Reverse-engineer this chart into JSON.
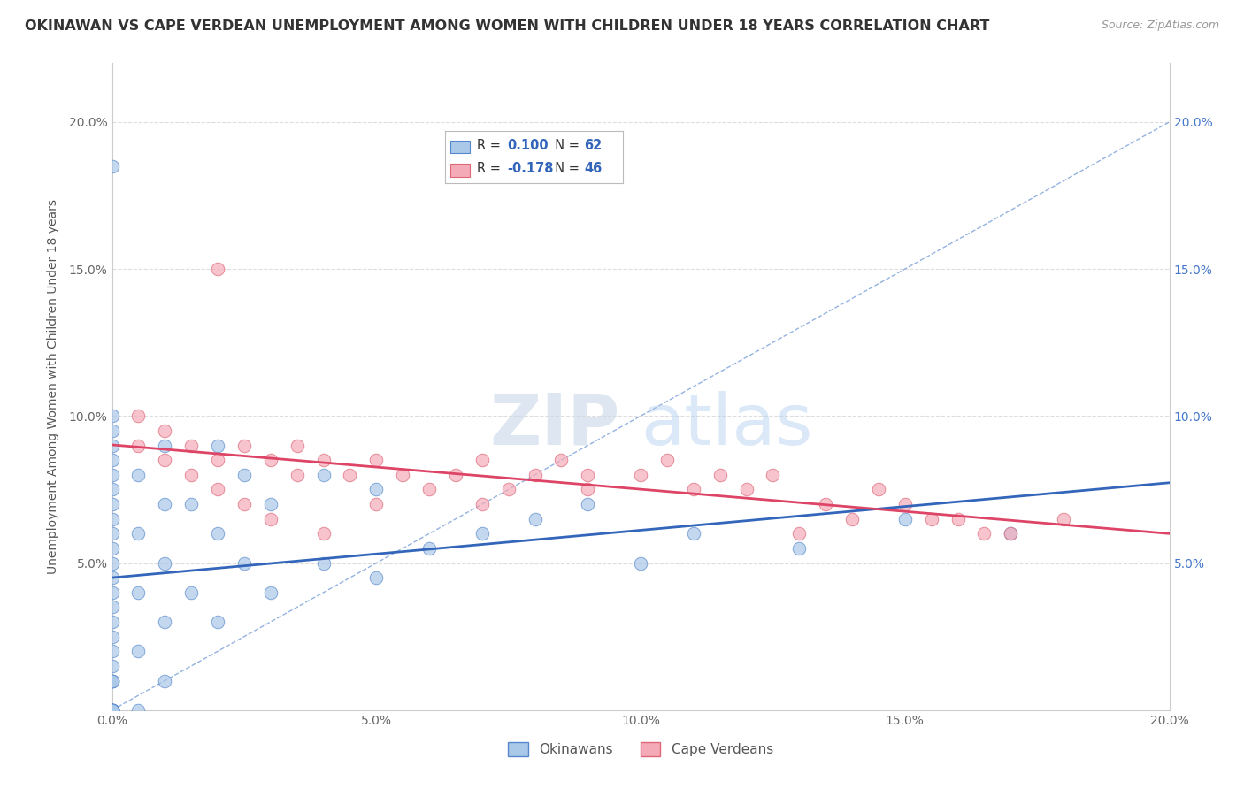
{
  "title": "OKINAWAN VS CAPE VERDEAN UNEMPLOYMENT AMONG WOMEN WITH CHILDREN UNDER 18 YEARS CORRELATION CHART",
  "source": "Source: ZipAtlas.com",
  "ylabel": "Unemployment Among Women with Children Under 18 years",
  "xlim": [
    0.0,
    0.2
  ],
  "ylim": [
    0.0,
    0.22
  ],
  "xticks": [
    0.0,
    0.05,
    0.1,
    0.15,
    0.2
  ],
  "yticks": [
    0.05,
    0.1,
    0.15,
    0.2
  ],
  "xticklabels": [
    "0.0%",
    "5.0%",
    "10.0%",
    "15.0%",
    "20.0%"
  ],
  "left_yticklabels": [
    "5.0%",
    "10.0%",
    "15.0%",
    "20.0%"
  ],
  "right_yticklabels": [
    "5.0%",
    "10.0%",
    "15.0%",
    "20.0%"
  ],
  "okinawan_color": "#aac8e8",
  "cape_verdean_color": "#f5aab8",
  "okinawan_edge": "#5588cc",
  "cape_verdean_edge": "#dd6677",
  "trend_blue": "#3366bb",
  "trend_pink": "#dd4466",
  "diag_color": "#88aadd",
  "R_okinawan": 0.1,
  "N_okinawan": 62,
  "R_cape_verdean": -0.178,
  "N_cape_verdean": 46,
  "watermark_zip": "ZIP",
  "watermark_atlas": "atlas",
  "legend_labels": [
    "Okinawans",
    "Cape Verdeans"
  ],
  "background_color": "#ffffff",
  "grid_color": "#dddddd",
  "okinawan_x": [
    0.0,
    0.0,
    0.0,
    0.0,
    0.0,
    0.0,
    0.0,
    0.0,
    0.0,
    0.0,
    0.0,
    0.0,
    0.0,
    0.0,
    0.0,
    0.0,
    0.0,
    0.0,
    0.0,
    0.0,
    0.0,
    0.0,
    0.0,
    0.0,
    0.0,
    0.0,
    0.0,
    0.0,
    0.0,
    0.0,
    0.005,
    0.005,
    0.005,
    0.005,
    0.005,
    0.01,
    0.01,
    0.01,
    0.01,
    0.01,
    0.015,
    0.015,
    0.02,
    0.02,
    0.02,
    0.025,
    0.025,
    0.03,
    0.03,
    0.04,
    0.04,
    0.05,
    0.05,
    0.06,
    0.07,
    0.08,
    0.09,
    0.1,
    0.11,
    0.13,
    0.15,
    0.17
  ],
  "okinawan_y": [
    0.0,
    0.0,
    0.0,
    0.0,
    0.0,
    0.0,
    0.0,
    0.0,
    0.01,
    0.01,
    0.01,
    0.015,
    0.02,
    0.025,
    0.03,
    0.035,
    0.04,
    0.045,
    0.05,
    0.055,
    0.06,
    0.065,
    0.07,
    0.075,
    0.08,
    0.085,
    0.09,
    0.095,
    0.1,
    0.185,
    0.0,
    0.02,
    0.04,
    0.06,
    0.08,
    0.01,
    0.03,
    0.05,
    0.07,
    0.09,
    0.04,
    0.07,
    0.03,
    0.06,
    0.09,
    0.05,
    0.08,
    0.04,
    0.07,
    0.05,
    0.08,
    0.045,
    0.075,
    0.055,
    0.06,
    0.065,
    0.07,
    0.05,
    0.06,
    0.055,
    0.065,
    0.06
  ],
  "cape_verdean_x": [
    0.005,
    0.005,
    0.01,
    0.01,
    0.015,
    0.015,
    0.02,
    0.02,
    0.02,
    0.025,
    0.025,
    0.03,
    0.03,
    0.035,
    0.035,
    0.04,
    0.04,
    0.045,
    0.05,
    0.05,
    0.055,
    0.06,
    0.065,
    0.07,
    0.07,
    0.075,
    0.08,
    0.085,
    0.09,
    0.09,
    0.1,
    0.105,
    0.11,
    0.115,
    0.12,
    0.125,
    0.13,
    0.135,
    0.14,
    0.145,
    0.15,
    0.155,
    0.16,
    0.165,
    0.17,
    0.18
  ],
  "cape_verdean_y": [
    0.09,
    0.1,
    0.085,
    0.095,
    0.08,
    0.09,
    0.075,
    0.085,
    0.15,
    0.07,
    0.09,
    0.065,
    0.085,
    0.08,
    0.09,
    0.06,
    0.085,
    0.08,
    0.07,
    0.085,
    0.08,
    0.075,
    0.08,
    0.07,
    0.085,
    0.075,
    0.08,
    0.085,
    0.075,
    0.08,
    0.08,
    0.085,
    0.075,
    0.08,
    0.075,
    0.08,
    0.06,
    0.07,
    0.065,
    0.075,
    0.07,
    0.065,
    0.065,
    0.06,
    0.06,
    0.065
  ],
  "title_fontsize": 11.5,
  "axis_fontsize": 10,
  "tick_fontsize": 10
}
